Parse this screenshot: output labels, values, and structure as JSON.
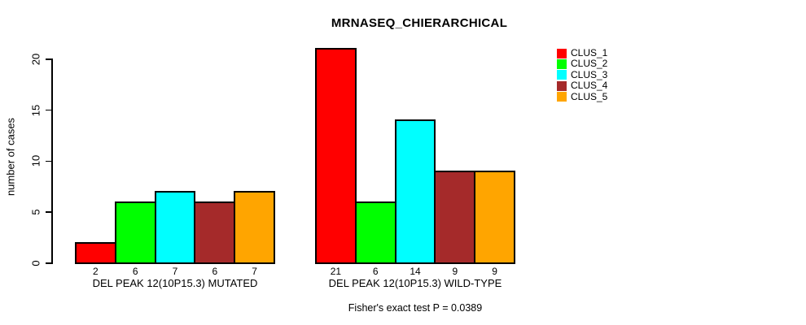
{
  "chart_data": {
    "type": "bar",
    "title": "MRNASEQ_CHIERARCHICAL",
    "ylabel": "number of cases",
    "xlabel": "",
    "annotation": "Fisher's exact test P = 0.0389",
    "yticks": [
      0,
      5,
      10,
      15,
      20
    ],
    "ylim": [
      0,
      21
    ],
    "grid": false,
    "legend_position": "right-outside",
    "bar_border_color": "#000000",
    "background_color": "#FFFFFF",
    "categories": [
      "DEL PEAK 12(10P15.3) MUTATED",
      "DEL PEAK 12(10P15.3) WILD-TYPE"
    ],
    "series": [
      {
        "name": "CLUS_1",
        "color": "#FF0000",
        "values": [
          2,
          21
        ]
      },
      {
        "name": "CLUS_2",
        "color": "#00FF00",
        "values": [
          6,
          6
        ]
      },
      {
        "name": "CLUS_3",
        "color": "#00FFFF",
        "values": [
          7,
          14
        ]
      },
      {
        "name": "CLUS_4",
        "color": "#A52A2A",
        "values": [
          6,
          9
        ]
      },
      {
        "name": "CLUS_5",
        "color": "#FFA500",
        "values": [
          7,
          9
        ]
      }
    ]
  }
}
